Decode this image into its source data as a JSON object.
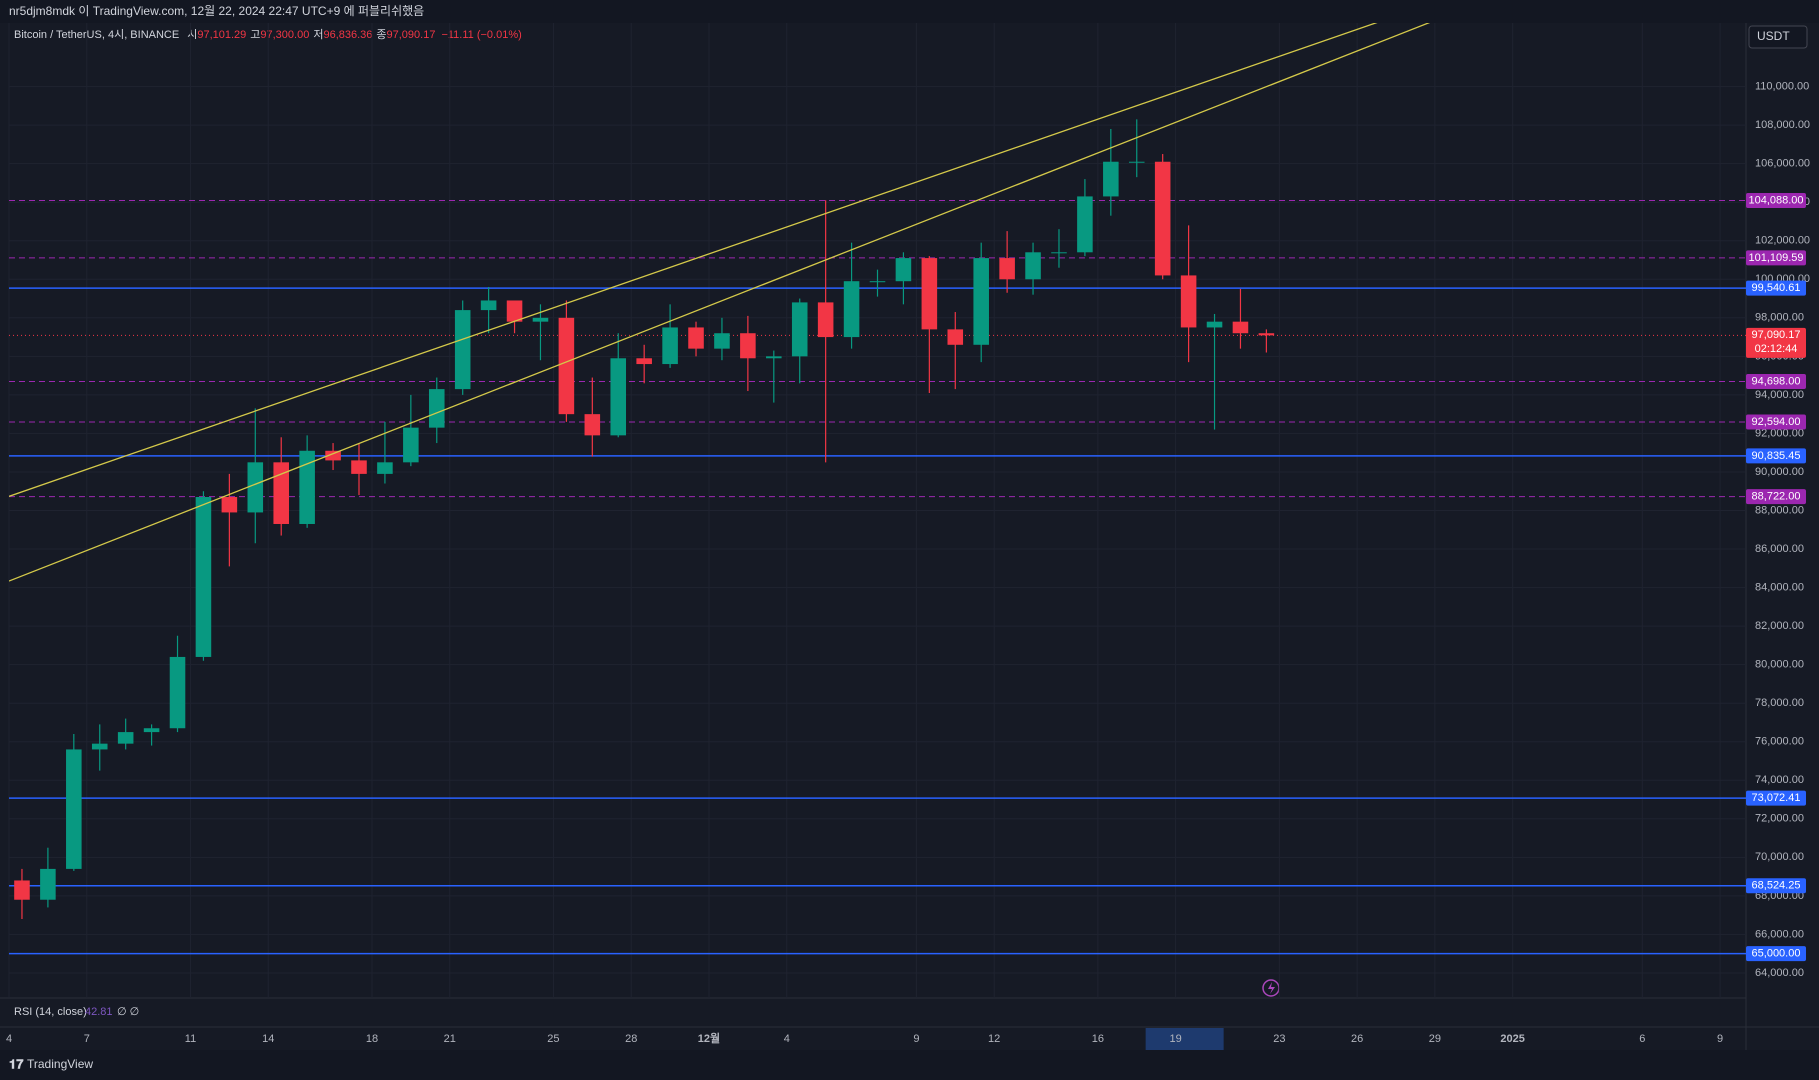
{
  "header": "nr5djm8mdk 이 TradingView.com, 12월 22, 2024 22:47 UTC+9 에 퍼블리쉬했음",
  "footer": "TradingView",
  "chart_data": {
    "type": "candlestick",
    "title": "Bitcoin / TetherUS, 4시, BINANCE",
    "ohlc_labels": [
      {
        "label": "시",
        "value": "97,101.29"
      },
      {
        "label": "고",
        "value": "97,300.00"
      },
      {
        "label": "저",
        "value": "96,836.36"
      },
      {
        "label": "종",
        "value": "97,090.17"
      }
    ],
    "change": "−11.11 (−0.01%)",
    "currency": "USDT",
    "indicator": {
      "name": "RSI (14, close)",
      "value": "42.81",
      "extra": "∅ ∅"
    },
    "up_color": "#089981",
    "down_color": "#f23645",
    "grid": true,
    "x": [
      "2024-11-04",
      "2024-11-05",
      "2024-11-06",
      "2024-11-07",
      "2024-11-08",
      "2024-11-09",
      "2024-11-10",
      "2024-11-11",
      "2024-11-12",
      "2024-11-13",
      "2024-11-14",
      "2024-11-15",
      "2024-11-16",
      "2024-11-17",
      "2024-11-18",
      "2024-11-19",
      "2024-11-20",
      "2024-11-21",
      "2024-11-22",
      "2024-11-23",
      "2024-11-24",
      "2024-11-25",
      "2024-11-26",
      "2024-11-27",
      "2024-11-28",
      "2024-11-29",
      "2024-11-30",
      "2024-12-01",
      "2024-12-02",
      "2024-12-03",
      "2024-12-04",
      "2024-12-05",
      "2024-12-06",
      "2024-12-07",
      "2024-12-08",
      "2024-12-09",
      "2024-12-10",
      "2024-12-11",
      "2024-12-12",
      "2024-12-13",
      "2024-12-14",
      "2024-12-15",
      "2024-12-16",
      "2024-12-17",
      "2024-12-18",
      "2024-12-19",
      "2024-12-20",
      "2024-12-21",
      "2024-12-22"
    ],
    "open": [
      68800,
      67800,
      69400,
      75600,
      75900,
      76500,
      76700,
      80400,
      88700,
      87900,
      90500,
      87300,
      91100,
      90600,
      89900,
      90500,
      92300,
      94300,
      98400,
      98900,
      97800,
      98000,
      93000,
      91900,
      95900,
      95600,
      97500,
      96400,
      97200,
      95900,
      96000,
      98800,
      97000,
      99900,
      99900,
      101100,
      97400,
      96600,
      101100,
      100000,
      101400,
      101400,
      104300,
      106100,
      106100,
      100200,
      97500,
      97800,
      97200
    ],
    "high": [
      69400,
      70500,
      76400,
      76900,
      77200,
      76900,
      81500,
      89000,
      89900,
      93300,
      91800,
      91900,
      91500,
      91500,
      92600,
      94000,
      94900,
      98900,
      99600,
      98800,
      98700,
      98900,
      94900,
      97200,
      96600,
      98700,
      97800,
      98000,
      98100,
      96300,
      99000,
      104100,
      101900,
      100500,
      101400,
      101200,
      98300,
      101900,
      102500,
      101900,
      102600,
      105200,
      107800,
      108300,
      106500,
      102800,
      98200,
      99500,
      97400
    ],
    "low": [
      66800,
      67400,
      69300,
      74500,
      75600,
      75800,
      76500,
      80200,
      85100,
      86300,
      86700,
      87100,
      90100,
      88800,
      89400,
      90300,
      91500,
      94000,
      97200,
      97200,
      95800,
      92600,
      90800,
      91800,
      94600,
      95400,
      96000,
      95800,
      94200,
      93600,
      94600,
      90500,
      96400,
      99100,
      98700,
      94100,
      94300,
      95700,
      99300,
      99200,
      100600,
      101200,
      103300,
      105300,
      100000,
      95700,
      92200,
      96400,
      96200
    ],
    "close": [
      67800,
      69400,
      75600,
      75900,
      76500,
      76700,
      80400,
      88700,
      87900,
      90500,
      87300,
      91100,
      90600,
      89900,
      90500,
      92300,
      94300,
      98400,
      98900,
      97800,
      98000,
      93000,
      91900,
      95900,
      95600,
      97500,
      96400,
      97200,
      95900,
      96000,
      98800,
      97000,
      99900,
      99900,
      101100,
      97400,
      96600,
      101100,
      100000,
      101400,
      101400,
      104300,
      106100,
      106100,
      100200,
      97500,
      97800,
      97200,
      97090.17
    ],
    "xlim": [
      "2024-11-04",
      "2025-01-10"
    ],
    "xticks": [
      {
        "value": "2024-11-04",
        "label": "4"
      },
      {
        "value": "2024-11-07",
        "label": "7"
      },
      {
        "value": "2024-11-11",
        "label": "11"
      },
      {
        "value": "2024-11-14",
        "label": "14"
      },
      {
        "value": "2024-11-18",
        "label": "18"
      },
      {
        "value": "2024-11-21",
        "label": "21"
      },
      {
        "value": "2024-11-25",
        "label": "25"
      },
      {
        "value": "2024-11-28",
        "label": "28"
      },
      {
        "value": "2024-12-01",
        "label": "12월"
      },
      {
        "value": "2024-12-04",
        "label": "4"
      },
      {
        "value": "2024-12-09",
        "label": "9"
      },
      {
        "value": "2024-12-12",
        "label": "12"
      },
      {
        "value": "2024-12-16",
        "label": "16"
      },
      {
        "value": "2024-12-19",
        "label": "19"
      },
      {
        "value": "2024-12-23",
        "label": "23"
      },
      {
        "value": "2024-12-26",
        "label": "26"
      },
      {
        "value": "2024-12-29",
        "label": "29"
      },
      {
        "value": "2025-01-01",
        "label": "2025"
      },
      {
        "value": "2025-01-06",
        "label": "6"
      },
      {
        "value": "2025-01-09",
        "label": "9"
      }
    ],
    "highlight_xtick": 13,
    "ylim": [
      62700,
      113300
    ],
    "yticks": [
      {
        "value": 64000,
        "label": "64,000.00"
      },
      {
        "value": 66000,
        "label": "66,000.00"
      },
      {
        "value": 68000,
        "label": "68,000.00"
      },
      {
        "value": 70000,
        "label": "70,000.00"
      },
      {
        "value": 72000,
        "label": "72,000.00"
      },
      {
        "value": 74000,
        "label": "74,000.00"
      },
      {
        "value": 76000,
        "label": "76,000.00"
      },
      {
        "value": 78000,
        "label": "78,000.00"
      },
      {
        "value": 80000,
        "label": "80,000.00"
      },
      {
        "value": 82000,
        "label": "82,000.00"
      },
      {
        "value": 84000,
        "label": "84,000.00"
      },
      {
        "value": 86000,
        "label": "86,000.00"
      },
      {
        "value": 88000,
        "label": "88,000.00"
      },
      {
        "value": 90000,
        "label": "90,000.00"
      },
      {
        "value": 92000,
        "label": "92,000.00"
      },
      {
        "value": 94000,
        "label": "94,000.00"
      },
      {
        "value": 96000,
        "label": "96,000.00"
      },
      {
        "value": 98000,
        "label": "98,000.00"
      },
      {
        "value": 100000,
        "label": "100,000.00"
      },
      {
        "value": 102000,
        "label": "102,000.00"
      },
      {
        "value": 104000,
        "label": "104,000.00"
      },
      {
        "value": 106000,
        "label": "106,000.00"
      },
      {
        "value": 108000,
        "label": "108,000.00"
      },
      {
        "value": 110000,
        "label": "110,000.00"
      }
    ],
    "levels": [
      {
        "value": 104088,
        "label": "104,088.00",
        "style": "dashed",
        "color": "#9c27b0"
      },
      {
        "value": 101109.59,
        "label": "101,109.59",
        "style": "dashed",
        "color": "#9c27b0"
      },
      {
        "value": 99540.61,
        "label": "99,540.61",
        "style": "solid",
        "color": "#2962ff"
      },
      {
        "value": 97090.17,
        "label": "97,090.17",
        "style": "dotted",
        "color": "#f23645",
        "countdown": "02:12:44"
      },
      {
        "value": 94698,
        "label": "94,698.00",
        "style": "dashed",
        "color": "#9c27b0"
      },
      {
        "value": 92594,
        "label": "92,594.00",
        "style": "dashed",
        "color": "#9c27b0"
      },
      {
        "value": 90835.45,
        "label": "90,835.45",
        "style": "solid",
        "color": "#2962ff"
      },
      {
        "value": 88722,
        "label": "88,722.00",
        "style": "dashed",
        "color": "#9c27b0"
      },
      {
        "value": 73072.41,
        "label": "73,072.41",
        "style": "solid",
        "color": "#2962ff"
      },
      {
        "value": 68524.25,
        "label": "68,524.25",
        "style": "solid",
        "color": "#2962ff"
      },
      {
        "value": 65000,
        "label": "65,000.00",
        "style": "solid",
        "color": "#2962ff"
      }
    ],
    "trendlines": [
      {
        "color": "#d4c94a",
        "x": [
          "2024-11-04",
          "2024-12-27"
        ],
        "y": [
          88735,
          113434
        ]
      },
      {
        "color": "#d4c94a",
        "x": [
          "2024-11-04",
          "2024-12-29"
        ],
        "y": [
          84337,
          113434
        ]
      }
    ]
  }
}
